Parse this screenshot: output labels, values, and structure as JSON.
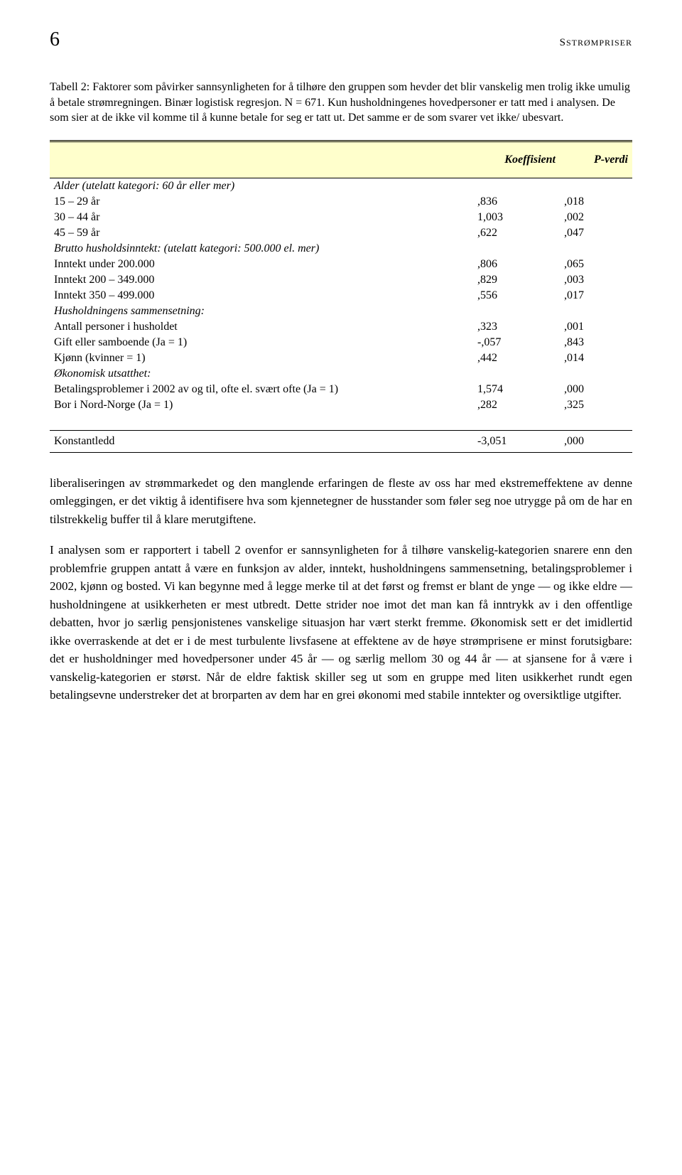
{
  "header": {
    "page_number": "6",
    "running_head": "STRØMPRISER"
  },
  "table_caption": "Tabell 2: Faktorer som påvirker sannsynligheten for å tilhøre den gruppen som hevder det blir vanskelig men trolig ikke umulig å betale strømregningen. Binær logistisk regresjon. N = 671. Kun husholdningenes hovedpersoner er tatt med i analysen. De som sier at de ikke vil komme til å kunne betale for seg er tatt ut. Det samme er de som svarer vet ikke/ ubesvart.",
  "table": {
    "headers": {
      "col1": "",
      "col2": "Koeffisient",
      "col3": "P-verdi"
    },
    "groups": [
      {
        "title": "Alder (utelatt kategori: 60 år eller mer)",
        "rows": [
          {
            "label": "15 – 29 år",
            "coef": ",836",
            "p": ",018"
          },
          {
            "label": "30 – 44 år",
            "coef": "1,003",
            "p": ",002"
          },
          {
            "label": "45 – 59 år",
            "coef": ",622",
            "p": ",047"
          }
        ]
      },
      {
        "title": "Brutto husholdsinntekt: (utelatt kategori: 500.000 el. mer)",
        "rows": [
          {
            "label": "Inntekt under 200.000",
            "coef": ",806",
            "p": ",065"
          },
          {
            "label": "Inntekt 200 – 349.000",
            "coef": ",829",
            "p": ",003"
          },
          {
            "label": "Inntekt 350 – 499.000",
            "coef": ",556",
            "p": ",017"
          }
        ]
      },
      {
        "title": "Husholdningens sammensetning:",
        "rows": [
          {
            "label": "Antall personer i husholdet",
            "coef": ",323",
            "p": ",001"
          },
          {
            "label": "Gift eller samboende (Ja = 1)",
            "coef": "-,057",
            "p": ",843"
          },
          {
            "label": "Kjønn (kvinner = 1)",
            "coef": ",442",
            "p": ",014"
          }
        ]
      },
      {
        "title": "Økonomisk utsatthet:",
        "rows": [
          {
            "label": "Betalingsproblemer i 2002 av og til, ofte el. svært ofte (Ja = 1)",
            "coef": "1,574",
            "p": ",000"
          },
          {
            "label": "Bor i Nord-Norge (Ja = 1)",
            "coef": ",282",
            "p": ",325"
          }
        ]
      }
    ],
    "constant": {
      "label": "Konstantledd",
      "coef": "-3,051",
      "p": ",000"
    }
  },
  "paragraphs": {
    "p1": "liberaliseringen av strømmarkedet og den manglende erfaringen de fleste av oss har med ekstremeffektene av denne omleggingen, er det viktig å identifisere hva som kjennetegner de husstander som føler seg noe utrygge på om de har en tilstrekkelig buffer til å klare merutgiftene.",
    "p2": "I analysen som er rapportert i tabell 2 ovenfor er sannsynligheten for å tilhøre vanskelig-kategorien snarere enn den problemfrie gruppen antatt å være en funksjon av alder, inntekt, husholdningens sammensetning, betalingsproblemer i 2002, kjønn og bosted. Vi kan begynne med å legge merke til at det først og fremst er blant de ynge — og ikke eldre — husholdningene at usikkerheten er mest utbredt. Dette strider noe imot det man kan få inntrykk av i den offentlige debatten, hvor jo særlig pensjonistenes vanskelige situasjon har vært sterkt fremme. Økonomisk sett er det imidlertid ikke overraskende at det er i de mest turbulente livsfasene at effektene av de høye strømprisene er minst forutsigbare: det er husholdninger med hovedpersoner under 45 år — og særlig mellom 30 og 44 år — at sjansene for å være i vanskelig-kategorien er størst. Når de eldre faktisk skiller seg ut som en gruppe med liten usikkerhet rundt egen betalingsevne understreker det at brorparten av dem har en grei økonomi med stabile inntekter og oversiktlige utgifter."
  }
}
